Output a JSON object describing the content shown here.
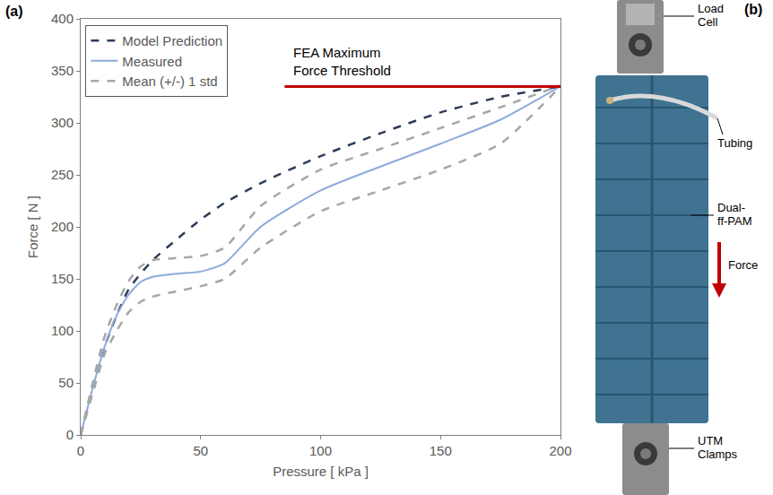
{
  "chart_data": {
    "type": "line",
    "panel_label": "(a)",
    "xlabel": "Pressure [ kPa ]",
    "ylabel": "Force [ N ]",
    "x": [
      0,
      5,
      10,
      15,
      20,
      25,
      30,
      40,
      50,
      60,
      75,
      100,
      125,
      150,
      175,
      200
    ],
    "series": [
      {
        "name": "Model Prediction",
        "color": "#2e3d57",
        "line_style": "dash",
        "values": [
          0,
          45,
          85,
          115,
          140,
          155,
          168,
          188,
          207,
          223,
          242,
          268,
          290,
          310,
          325,
          335
        ]
      },
      {
        "name": "Measured",
        "color": "#8eaadb",
        "line_style": "solid",
        "values": [
          0,
          45,
          85,
          115,
          135,
          147,
          152,
          155,
          157,
          165,
          200,
          235,
          258,
          280,
          303,
          335
        ]
      },
      {
        "name": "Mean (+/-) 1 std",
        "color": "#a6a6a6",
        "line_style": "dash",
        "values": [
          0,
          50,
          95,
          125,
          148,
          162,
          168,
          170,
          172,
          180,
          220,
          255,
          275,
          295,
          315,
          336
        ]
      },
      {
        "name": "Mean (+/-) 1 std",
        "color": "#a6a6a6",
        "line_style": "dash",
        "values": [
          0,
          40,
          78,
          100,
          118,
          128,
          133,
          138,
          143,
          150,
          180,
          215,
          235,
          255,
          280,
          335
        ]
      }
    ],
    "annotations": [
      {
        "text": "FEA Maximum Force Threshold",
        "y": 335,
        "x": [
          85,
          200
        ],
        "color": "#c00000"
      }
    ],
    "xlim": [
      0,
      200
    ],
    "xticks": [
      0,
      50,
      100,
      150,
      200
    ],
    "ylim": [
      0,
      400
    ],
    "yticks": [
      0,
      50,
      100,
      150,
      200,
      250,
      300,
      350,
      400
    ],
    "grid": false,
    "legend": "upper left"
  },
  "photo_panel": {
    "panel_label": "(b)",
    "callouts": {
      "load_cell": "Load Cell",
      "tubing": "Tubing",
      "actuator": "Dual-ff-PAM",
      "clamps": "UTM Clamps"
    },
    "force_label": "Force"
  }
}
